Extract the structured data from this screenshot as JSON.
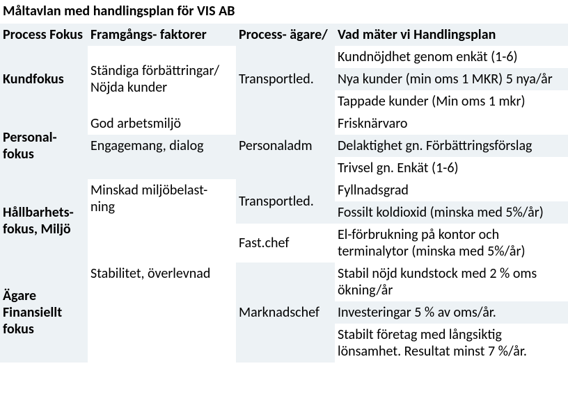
{
  "title": "Måltavlan  med handlingsplan för VIS AB",
  "headers": {
    "process": "Process Fokus",
    "faktor": "Framgångs- faktorer",
    "owner": "Process- ägare/",
    "measure": "Vad mäter vi Handlingsplan"
  },
  "rows": {
    "kund": {
      "process": "Kundfokus",
      "faktor": "Ständiga förbättringar/ Nöjda kunder",
      "owner": "Transportled.",
      "m1": " Kundnöjdhet genom enkät (1-6)",
      "m2": "Nya kunder (min oms 1 MKR) 5 nya/år",
      "m3": "Tappade kunder (Min oms 1 mkr)"
    },
    "personal": {
      "process": "Personal- fokus",
      "faktor1": "God arbetsmiljö",
      "faktor2": "Engagemang, dialog",
      "owner": "Personaladm",
      "m1": "Frisknärvaro",
      "m2": "Delaktighet gn. Förbättringsförslag",
      "m3": "Trivsel gn. Enkät (1-6)"
    },
    "miljo": {
      "process": "Hållbarhets-fokus, Miljö",
      "faktor": "Minskad miljöbelast- ning",
      "owner1": "Transportled.",
      "owner2": "Fast.chef",
      "m1": "Fyllnadsgrad",
      "m2": "Fossilt koldioxid (minska med 5%/år)",
      "m3": "El-förbrukning på kontor och terminalytor (minska med 5%/år)"
    },
    "agare": {
      "process": "Ägare  Finansiellt fokus",
      "faktor": "Stabilitet, överlevnad",
      "owner": "Marknadschef",
      "m1": "Stabil nöjd kundstock med 2 % oms ökning/år",
      "m2": "Investeringar 5 % av oms/år.",
      "m3": "Stabilt företag med långsiktig lönsamhet. Resultat minst 7 %/år."
    }
  },
  "style": {
    "title_fontsize": 20,
    "body_fontsize": 20,
    "light_bg": "#edf2f5",
    "white_bg": "#ffffff",
    "text_color": "#000000"
  }
}
